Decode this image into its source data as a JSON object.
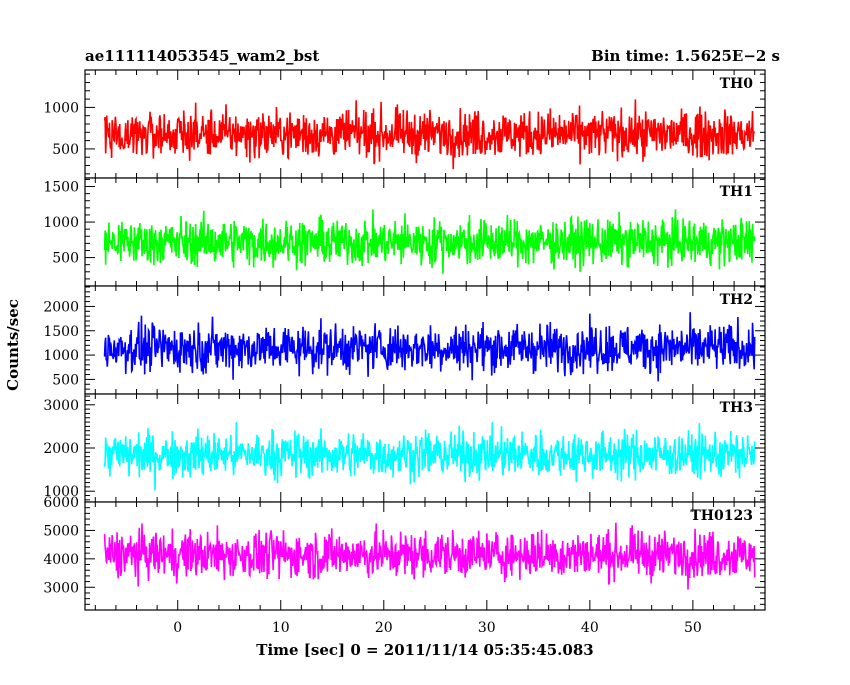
{
  "header": {
    "left": "ae111114053545_wam2_bst",
    "right": "Bin time: 1.5625E−2 s"
  },
  "chart_data": {
    "type": "line",
    "xlabel": "Time [sec] 0 = 2011/11/14 05:35:45.083",
    "ylabel": "Counts/sec",
    "xlim": [
      -9,
      57
    ],
    "x_ticks": [
      0,
      10,
      20,
      30,
      40,
      50
    ],
    "x_tick_labels": [
      "0",
      "10",
      "20",
      "30",
      "40",
      "50"
    ],
    "data_x_range": [
      -7.1,
      56.0
    ],
    "grid": false,
    "panels": [
      {
        "name": "TH0",
        "color": "#ff0000",
        "ylim": [
          150,
          1450
        ],
        "yticks": [
          500,
          1000
        ],
        "ytick_labels": [
          "500",
          "1000"
        ],
        "center": 680,
        "low": 180,
        "high": 1400
      },
      {
        "name": "TH1",
        "color": "#00ff00",
        "ylim": [
          100,
          1620
        ],
        "yticks": [
          500,
          1000,
          1500
        ],
        "ytick_labels": [
          "500",
          "1000",
          "1500"
        ],
        "center": 720,
        "low": 150,
        "high": 1550
      },
      {
        "name": "TH2",
        "color": "#0000ff",
        "ylim": [
          200,
          2420
        ],
        "yticks": [
          500,
          1000,
          1500,
          2000
        ],
        "ytick_labels": [
          "500",
          "1000",
          "1500",
          "2000"
        ],
        "center": 1150,
        "low": 250,
        "high": 2350
      },
      {
        "name": "TH3",
        "color": "#00ffff",
        "ylim": [
          750,
          3250
        ],
        "yticks": [
          1000,
          2000,
          3000
        ],
        "ytick_labels": [
          "1000",
          "2000",
          "3000"
        ],
        "center": 1850,
        "low": 850,
        "high": 3150
      },
      {
        "name": "TH0123",
        "color": "#ff00ff",
        "ylim": [
          2200,
          6000
        ],
        "yticks": [
          3000,
          4000,
          5000,
          6000
        ],
        "ytick_labels": [
          "3000",
          "4000",
          "5000",
          "6000"
        ],
        "center": 4150,
        "low": 2300,
        "high": 5850
      }
    ]
  }
}
